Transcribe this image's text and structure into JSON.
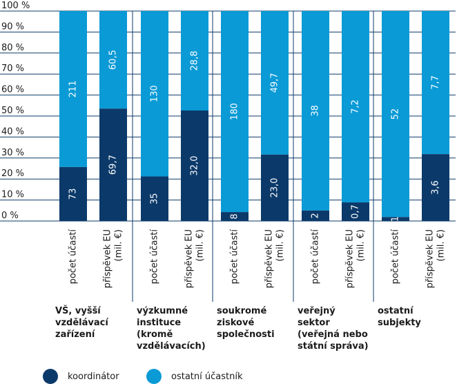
{
  "chart_data": {
    "type": "stacked-bar-100",
    "y_ticks": [
      "0 %",
      "10 %",
      "20 %",
      "30 %",
      "40 %",
      "50 %",
      "60 %",
      "70 %",
      "80 %",
      "90 %",
      "100 %"
    ],
    "ylim": [
      0,
      100
    ],
    "grid": true,
    "colors": {
      "koordinator": "#0b3a6a",
      "ostatni": "#0a9ad6"
    },
    "legend": [
      {
        "key": "koordinator",
        "label": "koordinátor"
      },
      {
        "key": "ostatni",
        "label": "ostatní účastník"
      }
    ],
    "groups": [
      {
        "label": "VŠ, vyšší\nvzdělávací\nzařízení",
        "bars": [
          {
            "category": "počet účastí",
            "koordinator": 73,
            "ostatni": 211,
            "koordinator_label": "73",
            "ostatni_label": "211"
          },
          {
            "category": "příspěvek EU\n(mil. €)",
            "koordinator": 69.7,
            "ostatni": 60.5,
            "koordinator_label": "69,7",
            "ostatni_label": "60,5"
          }
        ]
      },
      {
        "label": "výzkumné\ninstituce\n(kromě\nvzdělávacích)",
        "bars": [
          {
            "category": "počet účastí",
            "koordinator": 35,
            "ostatni": 130,
            "koordinator_label": "35",
            "ostatni_label": "130"
          },
          {
            "category": "příspěvek EU\n(mil. €)",
            "koordinator": 32.0,
            "ostatni": 28.8,
            "koordinator_label": "32,0",
            "ostatni_label": "28,8"
          }
        ]
      },
      {
        "label": "soukromé\nziskové\nspolečnosti",
        "bars": [
          {
            "category": "počet účastí",
            "koordinator": 8,
            "ostatni": 180,
            "koordinator_label": "8",
            "ostatni_label": "180"
          },
          {
            "category": "příspěvek EU\n(mil. €)",
            "koordinator": 23.0,
            "ostatni": 49.7,
            "koordinator_label": "23,0",
            "ostatni_label": "49,7"
          }
        ]
      },
      {
        "label": "veřejný\nsektor\n(veřejná nebo\nstátní správa)",
        "bars": [
          {
            "category": "počet účastí",
            "koordinator": 2,
            "ostatni": 38,
            "koordinator_label": "2",
            "ostatni_label": "38"
          },
          {
            "category": "příspěvek EU\n(mil. €)",
            "koordinator": 0.7,
            "ostatni": 7.2,
            "koordinator_label": "0,7",
            "ostatni_label": "7,2"
          }
        ]
      },
      {
        "label": "ostatní\nsubjekty",
        "bars": [
          {
            "category": "počet účastí",
            "koordinator": 1,
            "ostatni": 52,
            "koordinator_label": "1",
            "ostatni_label": "52"
          },
          {
            "category": "příspěvek EU\n(mil. €)",
            "koordinator": 3.6,
            "ostatni": 7.7,
            "koordinator_label": "3,6",
            "ostatni_label": "7,7"
          }
        ]
      }
    ]
  }
}
